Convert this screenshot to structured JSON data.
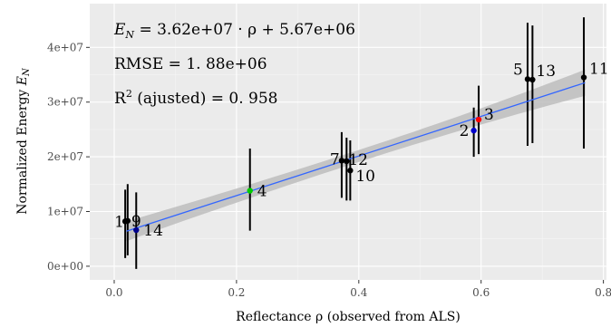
{
  "chart_data": {
    "type": "scatter",
    "xlabel": "Reflectance ρ (observed from ALS)",
    "ylabel": "Normalized Energy",
    "ylabel_sub": "N",
    "xlim": [
      -0.04,
      0.805
    ],
    "ylim": [
      -2500000,
      48000000
    ],
    "x_ticks": [
      0,
      0.2,
      0.4,
      0.6,
      0.8
    ],
    "x_tick_labels": [
      "0.0",
      "0.2",
      "0.4",
      "0.6",
      "0.8"
    ],
    "y_ticks": [
      0,
      10000000,
      20000000,
      30000000,
      40000000
    ],
    "y_tick_labels": [
      "0e+00",
      "1e+07",
      "2e+07",
      "3e+07",
      "4e+07"
    ],
    "grid": true,
    "annotations": {
      "equation_lhs": "E",
      "equation_sub": "N",
      "equation_rhs": " = 3.62e+07 · ρ + 5.67e+06",
      "rmse": "RMSE = 1. 88e+06",
      "r2_prefix": "R",
      "r2_sup": "2",
      "r2_suffix": " (ajusted) = 0. 958"
    },
    "fit": {
      "slope": 36200000,
      "intercept": 5670000,
      "x_range": [
        0.02,
        0.77
      ],
      "ci_half_width": [
        1800000,
        1100000,
        2400000
      ]
    },
    "error_bars": [
      {
        "x": 0.018,
        "y_low": 1500000,
        "y_high": 14000000
      },
      {
        "x": 0.022,
        "y_low": 2000000,
        "y_high": 15000000
      },
      {
        "x": 0.036,
        "y_low": -500000,
        "y_high": 13500000
      },
      {
        "x": 0.222,
        "y_low": 6500000,
        "y_high": 21500000
      },
      {
        "x": 0.372,
        "y_low": 12500000,
        "y_high": 24500000
      },
      {
        "x": 0.38,
        "y_low": 12000000,
        "y_high": 23500000
      },
      {
        "x": 0.386,
        "y_low": 12000000,
        "y_high": 23000000
      },
      {
        "x": 0.588,
        "y_low": 20000000,
        "y_high": 29000000
      },
      {
        "x": 0.596,
        "y_low": 20500000,
        "y_high": 33000000
      },
      {
        "x": 0.676,
        "y_low": 22000000,
        "y_high": 44500000
      },
      {
        "x": 0.684,
        "y_low": 22500000,
        "y_high": 44000000
      },
      {
        "x": 0.768,
        "y_low": 21500000,
        "y_high": 45500000
      }
    ],
    "points": [
      {
        "label": "1",
        "x": 0.018,
        "y": 8200000,
        "color": "#000000"
      },
      {
        "label": "9",
        "x": 0.022,
        "y": 8300000,
        "color": "#000000"
      },
      {
        "label": "14",
        "x": 0.036,
        "y": 6600000,
        "color": "#00008b"
      },
      {
        "label": "4",
        "x": 0.222,
        "y": 13800000,
        "color": "#00cc00"
      },
      {
        "label": "7",
        "x": 0.372,
        "y": 19300000,
        "color": "#000000"
      },
      {
        "label": "12",
        "x": 0.38,
        "y": 19200000,
        "color": "#000000"
      },
      {
        "label": "10",
        "x": 0.386,
        "y": 17500000,
        "color": "#000000"
      },
      {
        "label": "2",
        "x": 0.588,
        "y": 24800000,
        "color": "#0000cc"
      },
      {
        "label": "3",
        "x": 0.596,
        "y": 26800000,
        "color": "#ff0000"
      },
      {
        "label": "5",
        "x": 0.676,
        "y": 34200000,
        "color": "#000000"
      },
      {
        "label": "13",
        "x": 0.684,
        "y": 34100000,
        "color": "#000000"
      },
      {
        "label": "11",
        "x": 0.768,
        "y": 34500000,
        "color": "#000000"
      }
    ],
    "colors": {
      "panel": "#ebebeb",
      "grid_major": "#ffffff",
      "grid_minor": "#f5f5f5",
      "fit_line": "#3366ff",
      "ribbon": "#bdbdbd"
    }
  }
}
